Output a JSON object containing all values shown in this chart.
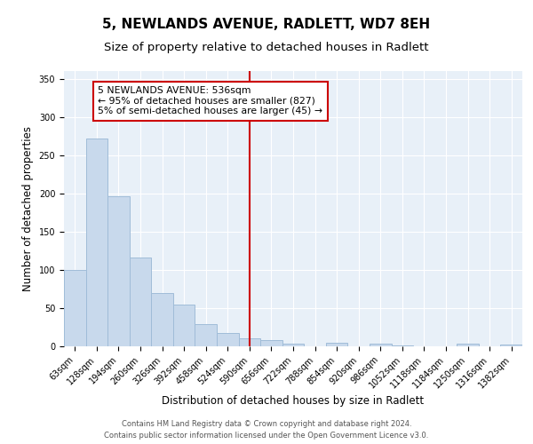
{
  "title": "5, NEWLANDS AVENUE, RADLETT, WD7 8EH",
  "subtitle": "Size of property relative to detached houses in Radlett",
  "xlabel": "Distribution of detached houses by size in Radlett",
  "ylabel": "Number of detached properties",
  "bar_labels": [
    "63sqm",
    "128sqm",
    "194sqm",
    "260sqm",
    "326sqm",
    "392sqm",
    "458sqm",
    "524sqm",
    "590sqm",
    "656sqm",
    "722sqm",
    "788sqm",
    "854sqm",
    "920sqm",
    "986sqm",
    "1052sqm",
    "1118sqm",
    "1184sqm",
    "1250sqm",
    "1316sqm",
    "1382sqm"
  ],
  "bar_values": [
    100,
    272,
    196,
    116,
    70,
    55,
    29,
    17,
    11,
    8,
    3,
    0,
    5,
    0,
    3,
    1,
    0,
    0,
    3,
    0,
    2
  ],
  "bar_color": "#c8d9ec",
  "bar_edge_color": "#a0bcd8",
  "vline_x": 8.0,
  "vline_color": "#cc0000",
  "annotation_text": "5 NEWLANDS AVENUE: 536sqm\n← 95% of detached houses are smaller (827)\n5% of semi-detached houses are larger (45) →",
  "annotation_box_color": "#ffffff",
  "annotation_box_edge_color": "#cc0000",
  "ylim": [
    0,
    360
  ],
  "yticks": [
    0,
    50,
    100,
    150,
    200,
    250,
    300,
    350
  ],
  "bg_color": "#e8f0f8",
  "footer_line1": "Contains HM Land Registry data © Crown copyright and database right 2024.",
  "footer_line2": "Contains public sector information licensed under the Open Government Licence v3.0.",
  "title_fontsize": 11,
  "subtitle_fontsize": 9.5,
  "axis_fontsize": 8.5,
  "tick_fontsize": 7,
  "annotation_fontsize": 7.8,
  "footer_fontsize": 6
}
